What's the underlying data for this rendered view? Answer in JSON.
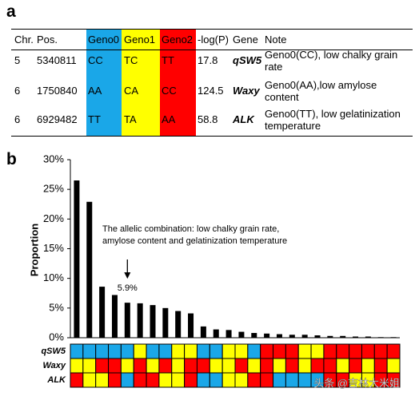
{
  "panel_labels": [
    "a",
    "b"
  ],
  "table": {
    "header": [
      "Chr.",
      "Pos.",
      "Geno0",
      "Geno1",
      "Geno2",
      "-log(P)",
      "Gene",
      "Note"
    ],
    "rows": [
      [
        5,
        5340811,
        "CC",
        "TC",
        "TT",
        17.8,
        "qSW5",
        "Geno0(CC), low chalky grain rate"
      ],
      [
        6,
        1750840,
        "AA",
        "CA",
        "CC",
        124.5,
        "Waxy",
        "Geno0(AA),low amylose content"
      ],
      [
        6,
        6929482,
        "TT",
        "TA",
        "AA",
        58.8,
        "ALK",
        "Geno0(TT), low gelatinization temperature"
      ]
    ],
    "colors": [
      "#1aa7e8",
      "#ffff00",
      "#ff0000"
    ]
  },
  "chart_data": {
    "type": "bar",
    "y_label": "Proportion",
    "values": [
      26.5,
      22.9,
      8.6,
      7.2,
      5.9,
      5.8,
      5.5,
      5.0,
      4.5,
      4.1,
      1.9,
      1.4,
      1.3,
      1.0,
      0.8,
      0.7,
      0.6,
      0.5,
      0.5,
      0.4,
      0.3,
      0.3,
      0.2,
      0.2,
      0.1,
      0.1
    ],
    "value_labels": [
      null,
      null,
      null,
      null,
      "5.9%",
      null,
      null,
      null,
      null,
      null,
      null,
      null,
      null,
      null,
      null,
      null,
      null,
      null,
      null,
      null,
      null,
      null,
      null,
      null,
      null,
      null
    ],
    "color": "#000000",
    "ylim": [
      0,
      30
    ],
    "yticks": [
      {
        "value": 0,
        "label": "0%"
      },
      {
        "value": 5,
        "label": "5%"
      },
      {
        "value": 10,
        "label": "10%"
      },
      {
        "value": 15,
        "label": "15%"
      },
      {
        "value": 20,
        "label": "20%"
      },
      {
        "value": 25,
        "label": "25%"
      },
      {
        "value": 30,
        "label": "30%"
      }
    ],
    "annotation": [
      "The allelic combination: low chalky grain rate,",
      "amylose content and gelatinization temperature"
    ],
    "genotype_rows": [
      {
        "name": "qSW5",
        "values": [
          0,
          0,
          0,
          0,
          0,
          1,
          0,
          0,
          1,
          1,
          0,
          0,
          1,
          1,
          0,
          2,
          2,
          2,
          1,
          1,
          2,
          2,
          2,
          2,
          2,
          2
        ]
      },
      {
        "name": "Waxy",
        "values": [
          1,
          1,
          2,
          2,
          1,
          2,
          1,
          2,
          1,
          2,
          2,
          1,
          1,
          2,
          1,
          2,
          1,
          2,
          1,
          2,
          2,
          1,
          2,
          1,
          2,
          1
        ]
      },
      {
        "name": "ALK",
        "values": [
          2,
          1,
          1,
          2,
          0,
          2,
          2,
          1,
          1,
          2,
          0,
          0,
          1,
          1,
          2,
          2,
          0,
          0,
          0,
          0,
          2,
          2,
          1,
          1,
          2,
          2
        ]
      }
    ]
  },
  "watermark": "头条 @吉林大米姐"
}
